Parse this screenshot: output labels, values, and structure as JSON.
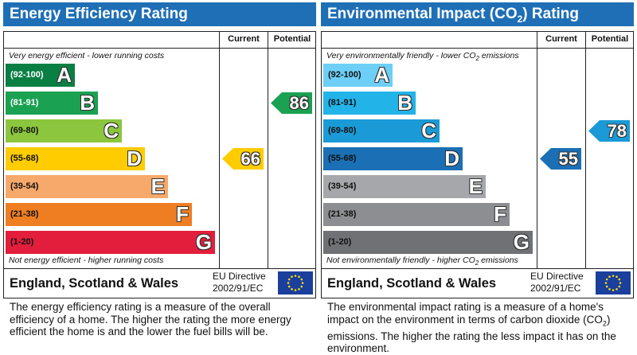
{
  "colors": {
    "header_blue": "#1f6fb7",
    "energy_bands": [
      "#0a7f43",
      "#1aa152",
      "#8cc63f",
      "#ffcc00",
      "#f7a96c",
      "#ef7d22",
      "#e31d3c"
    ],
    "environment_bands": [
      "#6ecff6",
      "#22b4e8",
      "#1a9ad6",
      "#1a6fb5",
      "#a5a7aa",
      "#8c8e91",
      "#6f7174"
    ],
    "eu_flag_blue": "#1b3f9c",
    "eu_star_yellow": "#ffdd00"
  },
  "chart_data": [
    {
      "type": "bar",
      "title": "Energy Efficiency Rating",
      "columns": [
        "Current",
        "Potential"
      ],
      "top_caption": "Very energy efficient - lower running costs",
      "bottom_caption": "Not energy efficient - higher running costs",
      "bands": [
        {
          "range": "(92-100)",
          "letter": "A"
        },
        {
          "range": "(81-91)",
          "letter": "B"
        },
        {
          "range": "(69-80)",
          "letter": "C"
        },
        {
          "range": "(55-68)",
          "letter": "D"
        },
        {
          "range": "(39-54)",
          "letter": "E"
        },
        {
          "range": "(21-38)",
          "letter": "F"
        },
        {
          "range": "(1-20)",
          "letter": "G"
        }
      ],
      "current": {
        "value": 66,
        "label": "66",
        "band": "D"
      },
      "potential": {
        "value": 86,
        "label": "86",
        "band": "B"
      },
      "region": "England, Scotland & Wales",
      "directive_line1": "EU Directive",
      "directive_line2": "2002/91/EC",
      "description": "The energy efficiency rating is a measure of the overall efficiency of a home. The higher the rating the more energy efficient the home is and the lower the fuel bills will be."
    },
    {
      "type": "bar",
      "title_prefix": "Environmental Impact (CO",
      "title_sub": "2",
      "title_suffix": ") Rating",
      "columns": [
        "Current",
        "Potential"
      ],
      "top_caption_prefix": "Very environmentally friendly - lower CO",
      "top_caption_sub": "2",
      "top_caption_suffix": " emissions",
      "bottom_caption_prefix": "Not environmentally friendly - higher CO",
      "bottom_caption_sub": "2",
      "bottom_caption_suffix": " emissions",
      "bands": [
        {
          "range": "(92-100)",
          "letter": "A"
        },
        {
          "range": "(81-91)",
          "letter": "B"
        },
        {
          "range": "(69-80)",
          "letter": "C"
        },
        {
          "range": "(55-68)",
          "letter": "D"
        },
        {
          "range": "(39-54)",
          "letter": "E"
        },
        {
          "range": "(21-38)",
          "letter": "F"
        },
        {
          "range": "(1-20)",
          "letter": "G"
        }
      ],
      "current": {
        "value": 55,
        "label": "55",
        "band": "D"
      },
      "potential": {
        "value": 78,
        "label": "78",
        "band": "C"
      },
      "region": "England, Scotland & Wales",
      "directive_line1": "EU Directive",
      "directive_line2": "2002/91/EC",
      "description_prefix": "The environmental impact rating is a measure of a home's impact on the environment in terms of carbon dioxide (CO",
      "description_sub": "2",
      "description_suffix": ") emissions. The higher the rating the less impact it has on the environment."
    }
  ]
}
